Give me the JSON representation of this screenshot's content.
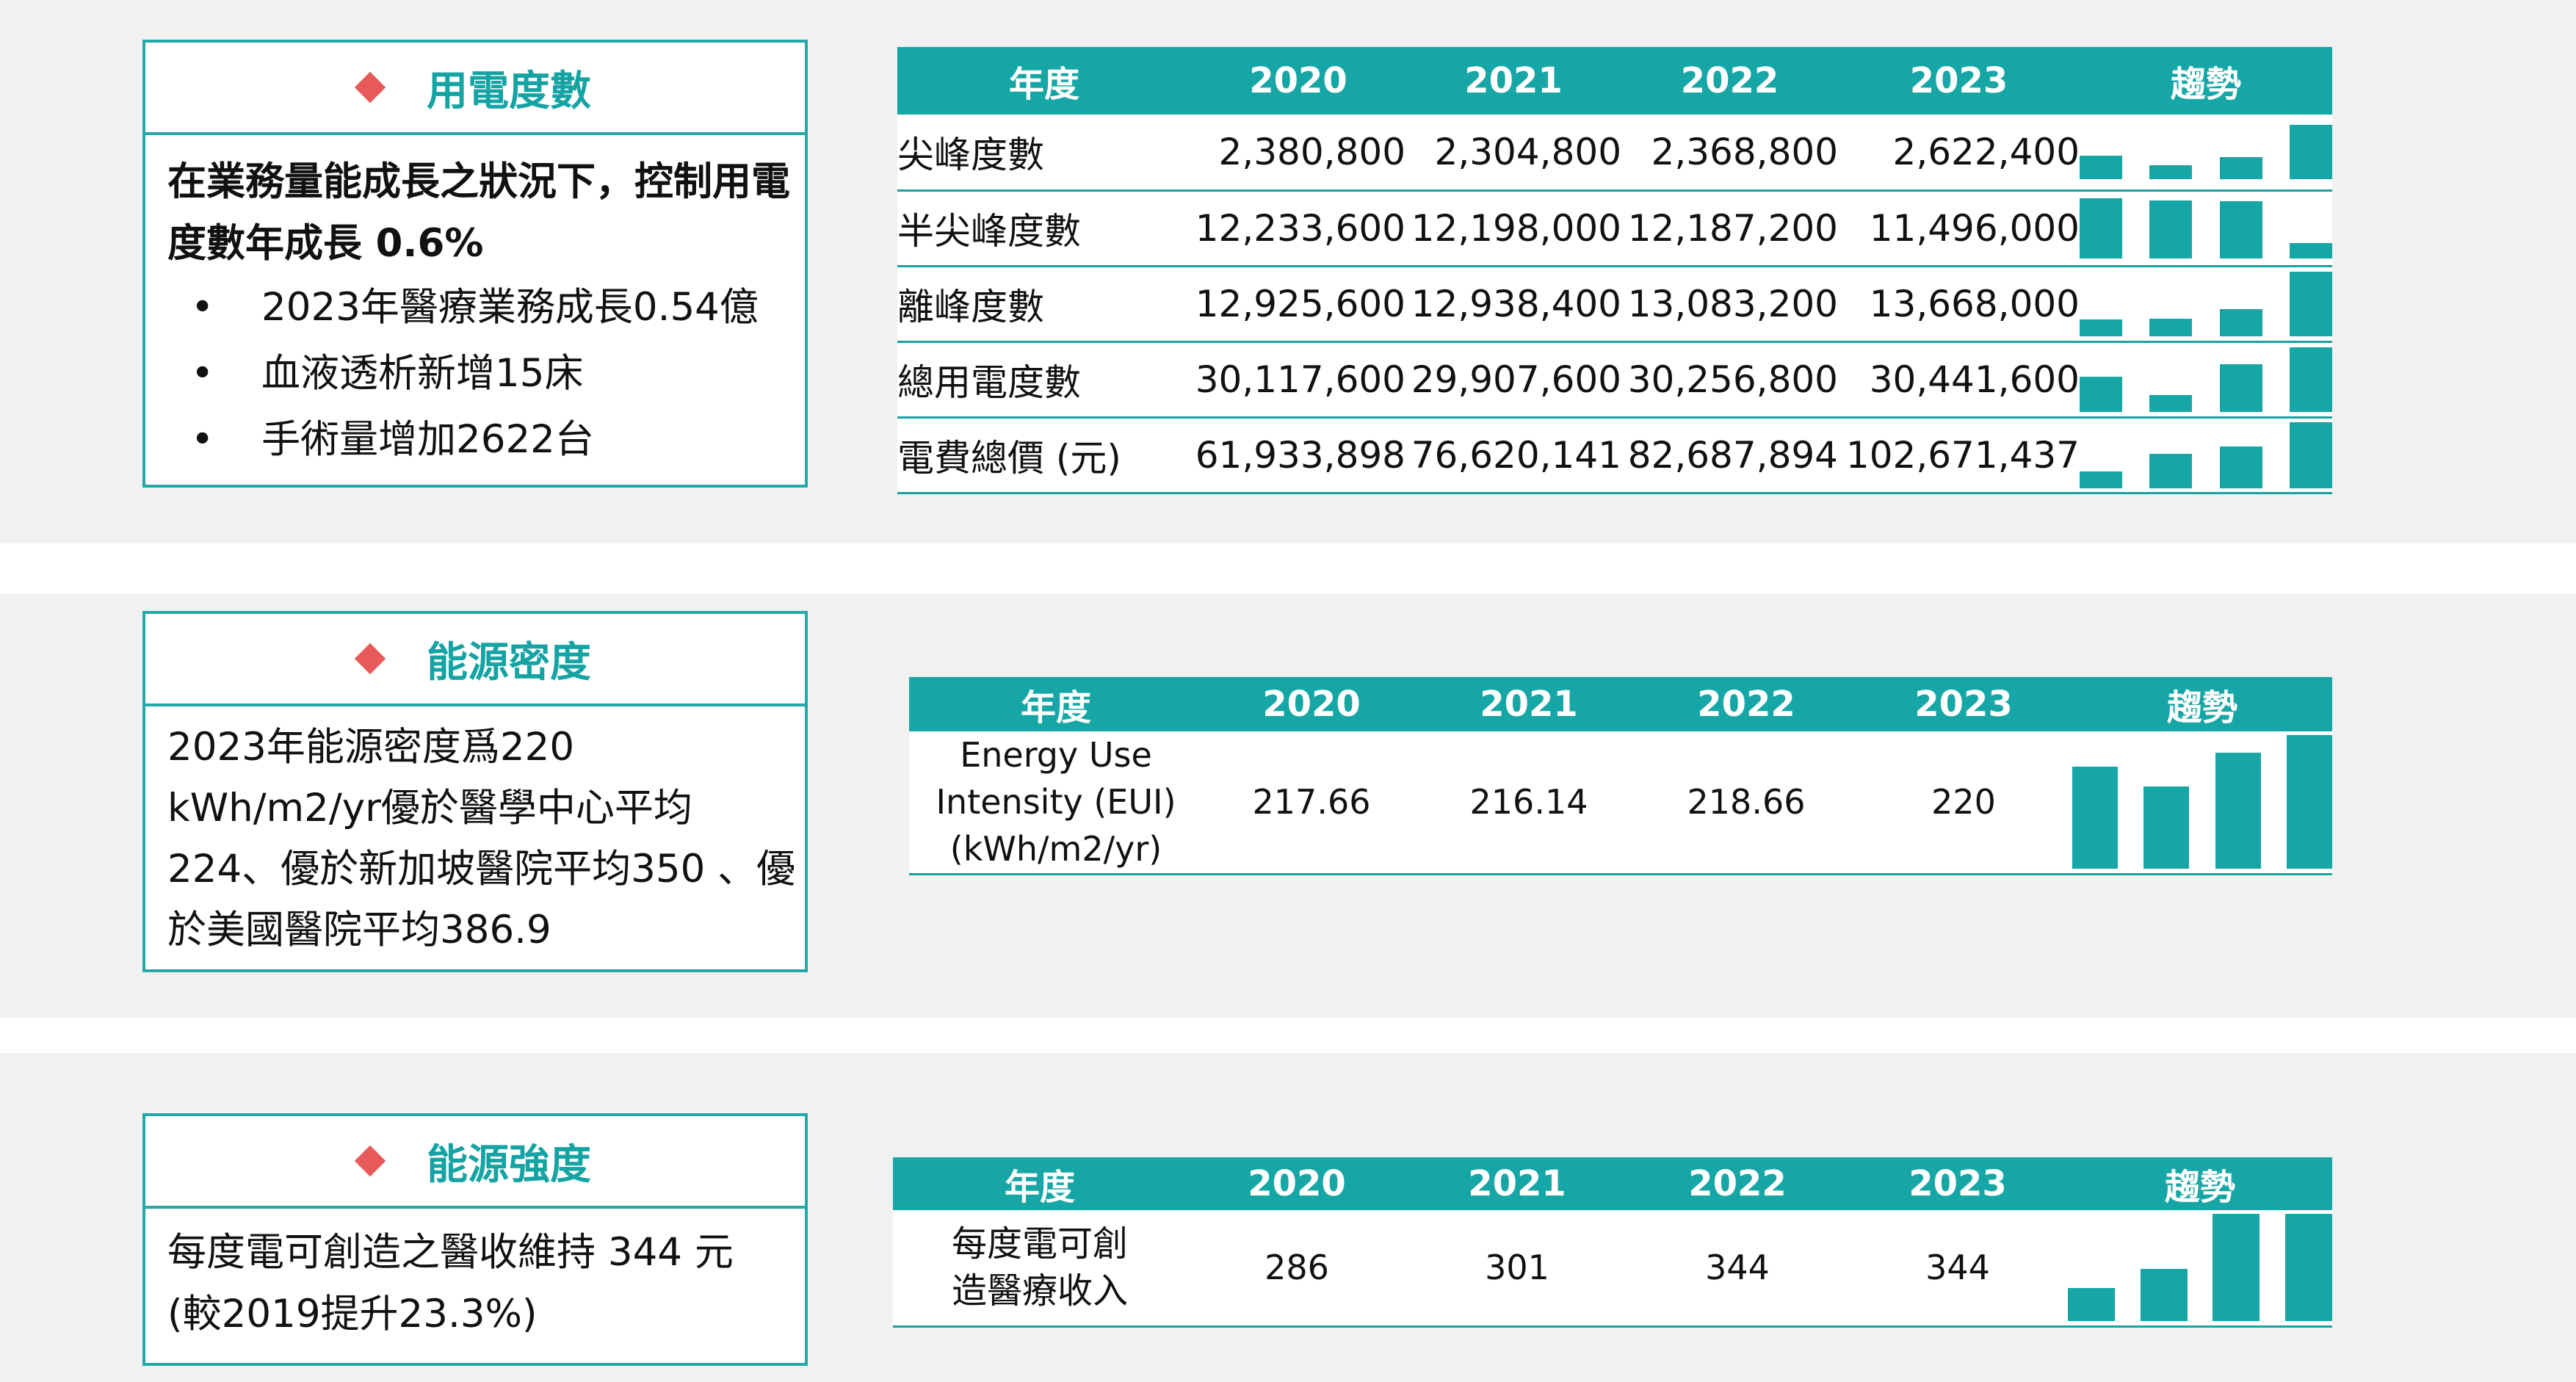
{
  "sections": [
    {
      "title": "用電度數",
      "headline": "在業務量能成長之狀況下，控制用電度數年成長 0.6%",
      "bullets": [
        "2023年醫療業務成長0.54億",
        "血液透析新增15床",
        "手術量增加2622台"
      ],
      "table": {
        "header": [
          "年度",
          "2020",
          "2021",
          "2022",
          "2023",
          "趨勢"
        ],
        "rows": [
          {
            "label": "尖峰度數",
            "values": [
              "2,380,800",
              "2,304,800",
              "2,368,800",
              "2,622,400"
            ],
            "trend": [
              2380800,
              2304800,
              2368800,
              2622400
            ]
          },
          {
            "label": "半尖峰度數",
            "values": [
              "12,233,600",
              "12,198,000",
              "12,187,200",
              "11,496,000"
            ],
            "trend": [
              12233600,
              12198000,
              12187200,
              11496000
            ]
          },
          {
            "label": "離峰度數",
            "values": [
              "12,925,600",
              "12,938,400",
              "13,083,200",
              "13,668,000"
            ],
            "trend": [
              12925600,
              12938400,
              13083200,
              13668000
            ]
          },
          {
            "label": "總用電度數",
            "values": [
              "30,117,600",
              "29,907,600",
              "30,256,800",
              "30,441,600"
            ],
            "trend": [
              30117600,
              29907600,
              30256800,
              30441600
            ]
          },
          {
            "label": "電費總價 (元)",
            "values": [
              "61,933,898",
              "76,620,141",
              "82,687,894",
              "102,671,437"
            ],
            "trend": [
              61933898,
              76620141,
              82687894,
              102671437
            ]
          }
        ]
      }
    },
    {
      "title": "能源密度",
      "body": "2023年能源密度爲220 kWh/m2/yr優於醫學中心平均224、優於新加坡醫院平均350 、優於美國醫院平均386.9",
      "table": {
        "header": [
          "年度",
          "2020",
          "2021",
          "2022",
          "2023",
          "趨勢"
        ],
        "rows": [
          {
            "label": "Energy Use Intensity (EUI) (kWh/m2/yr)",
            "values": [
              "217.66",
              "216.14",
              "218.66",
              "220"
            ],
            "trend": [
              217.66,
              216.14,
              218.66,
              220
            ]
          }
        ]
      }
    },
    {
      "title": "能源強度",
      "body": "每度電可創造之醫收維持 344 元 (較2019提升23.3%)",
      "table": {
        "header": [
          "年度",
          "2020",
          "2021",
          "2022",
          "2023",
          "趨勢"
        ],
        "rows": [
          {
            "label": "每度電可創造醫療收入",
            "values": [
              "286",
              "301",
              "344",
              "344"
            ],
            "trend": [
              286,
              301,
              344,
              344
            ]
          }
        ]
      }
    }
  ],
  "colors": {
    "accent": "#17a6a6",
    "marker": "#e85a5a",
    "band": "#f1f1f1"
  }
}
